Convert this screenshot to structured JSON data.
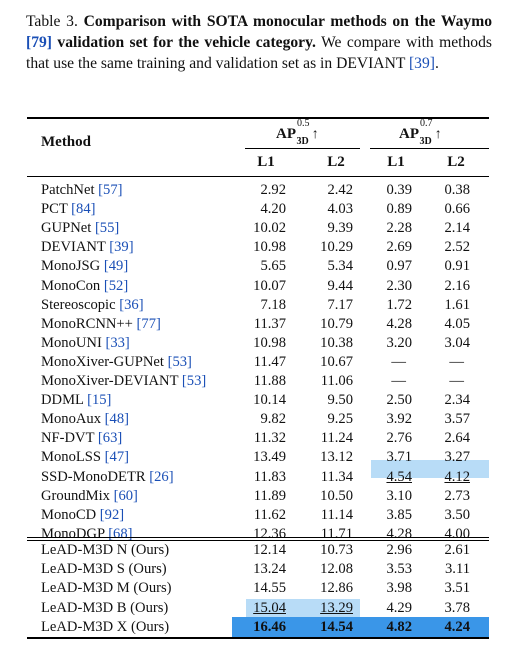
{
  "caption": {
    "label": "Table 3.",
    "bold_text_1": "Comparison with SOTA monocular methods on the Waymo",
    "ref_waymo": "[79]",
    "bold_text_2": "validation set for the vehicle category.",
    "text_1": "We compare with methods that use the same training and validation set as in DEVIANT",
    "ref_deviant": "[39]",
    "text_2": "."
  },
  "header": {
    "method": "Method",
    "group1": {
      "ap": "AP",
      "sup": "0.5",
      "sub": "3D",
      "arrow": "↑"
    },
    "group2": {
      "ap": "AP",
      "sup": "0.7",
      "sub": "3D",
      "arrow": "↑"
    },
    "sub_cols": [
      "L1",
      "L2",
      "L1",
      "L2"
    ]
  },
  "rows": [
    {
      "name": "PatchNet",
      "ref": "[57]",
      "v": [
        "2.92",
        "2.42",
        "0.39",
        "0.38"
      ]
    },
    {
      "name": "PCT",
      "ref": "[84]",
      "v": [
        "4.20",
        "4.03",
        "0.89",
        "0.66"
      ]
    },
    {
      "name": "GUPNet",
      "ref": "[55]",
      "v": [
        "10.02",
        "9.39",
        "2.28",
        "2.14"
      ]
    },
    {
      "name": "DEVIANT",
      "ref": "[39]",
      "v": [
        "10.98",
        "10.29",
        "2.69",
        "2.52"
      ]
    },
    {
      "name": "MonoJSG",
      "ref": "[49]",
      "v": [
        "5.65",
        "5.34",
        "0.97",
        "0.91"
      ]
    },
    {
      "name": "MonoCon",
      "ref": "[52]",
      "v": [
        "10.07",
        "9.44",
        "2.30",
        "2.16"
      ]
    },
    {
      "name": "Stereoscopic",
      "ref": "[36]",
      "v": [
        "7.18",
        "7.17",
        "1.72",
        "1.61"
      ]
    },
    {
      "name": "MonoRCNN++",
      "ref": "[77]",
      "v": [
        "11.37",
        "10.79",
        "4.28",
        "4.05"
      ]
    },
    {
      "name": "MonoUNI",
      "ref": "[33]",
      "v": [
        "10.98",
        "10.38",
        "3.20",
        "3.04"
      ]
    },
    {
      "name": "MonoXiver-GUPNet",
      "ref": "[53]",
      "v": [
        "11.47",
        "10.67",
        "—",
        "—"
      ]
    },
    {
      "name": "MonoXiver-DEVIANT",
      "ref": "[53]",
      "v": [
        "11.88",
        "11.06",
        "—",
        "—"
      ]
    },
    {
      "name": "DDML",
      "ref": "[15]",
      "v": [
        "10.14",
        "9.50",
        "2.50",
        "2.34"
      ]
    },
    {
      "name": "MonoAux",
      "ref": "[48]",
      "v": [
        "9.82",
        "9.25",
        "3.92",
        "3.57"
      ]
    },
    {
      "name": "NF-DVT",
      "ref": "[63]",
      "v": [
        "11.32",
        "11.24",
        "2.76",
        "2.64"
      ]
    },
    {
      "name": "MonoLSS",
      "ref": "[47]",
      "v": [
        "13.49",
        "13.12",
        "3.71",
        "3.27"
      ]
    },
    {
      "name": "SSD-MonoDETR",
      "ref": "[26]",
      "v": [
        "11.83",
        "11.34",
        "4.54",
        "4.12"
      ]
    },
    {
      "name": "GroundMix",
      "ref": "[60]",
      "v": [
        "11.89",
        "10.50",
        "3.10",
        "2.73"
      ]
    },
    {
      "name": "MonoCD",
      "ref": "[92]",
      "v": [
        "11.62",
        "11.14",
        "3.85",
        "3.50"
      ]
    },
    {
      "name": "MonoDGP",
      "ref": "[68]",
      "v": [
        "12.36",
        "11.71",
        "4.28",
        "4.00"
      ]
    }
  ],
  "ours": [
    {
      "name": "LeAD-M3D N (Ours)",
      "v": [
        "12.14",
        "10.73",
        "2.96",
        "2.61"
      ]
    },
    {
      "name": "LeAD-M3D S (Ours)",
      "v": [
        "13.24",
        "12.08",
        "3.53",
        "3.11"
      ]
    },
    {
      "name": "LeAD-M3D M (Ours)",
      "v": [
        "14.55",
        "12.86",
        "3.98",
        "3.51"
      ]
    },
    {
      "name": "LeAD-M3D B (Ours)",
      "v": [
        "15.04",
        "13.29",
        "4.29",
        "3.78"
      ]
    },
    {
      "name": "LeAD-M3D X (Ours)",
      "v": [
        "16.46",
        "14.54",
        "4.82",
        "4.24"
      ]
    }
  ],
  "colors": {
    "ref_blue": "#1a4fb6",
    "second_best": "#b8dcf7",
    "best": "#3a96e8"
  }
}
